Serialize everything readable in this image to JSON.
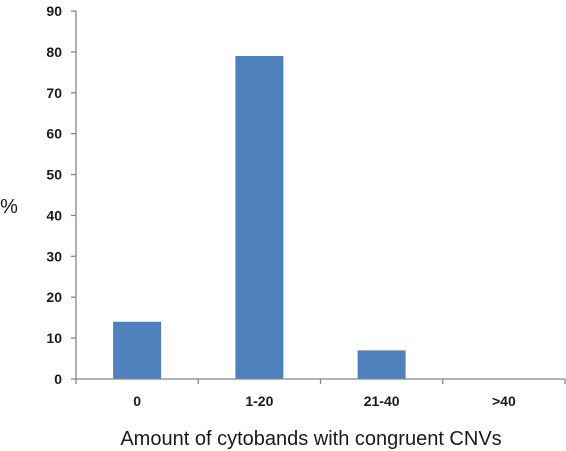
{
  "chart_data": {
    "type": "bar",
    "categories": [
      "0",
      "1-20",
      "21-40",
      ">40"
    ],
    "values": [
      14,
      79,
      7,
      0
    ],
    "xlabel": "Amount of cytobands with congruent CNVs",
    "ylabel": "%",
    "ylim": [
      0,
      90
    ],
    "yticks": [
      0,
      10,
      20,
      30,
      40,
      50,
      60,
      70,
      80,
      90
    ],
    "grid": false,
    "legend": "none",
    "bar_color": "#4f81bd",
    "axis_color": "#868686"
  }
}
